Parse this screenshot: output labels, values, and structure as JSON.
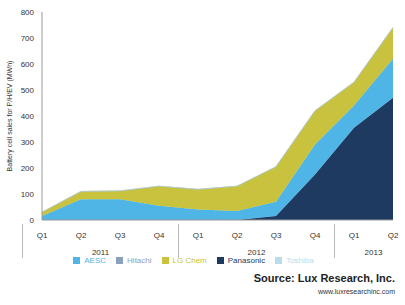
{
  "chart_data": {
    "type": "area",
    "stacked": true,
    "y_label": "Battery cell sales for P/H/EV  (MWh)",
    "categories": [
      "Q1",
      "Q2",
      "Q3",
      "Q4",
      "Q1",
      "Q2",
      "Q3",
      "Q4",
      "Q1",
      "Q2"
    ],
    "x_groups": [
      {
        "label": "2011",
        "span": 4
      },
      {
        "label": "2012",
        "span": 4
      },
      {
        "label": "2013",
        "span": 2
      }
    ],
    "series": [
      {
        "name": "Panasonic",
        "color": "#1f3a60",
        "values": [
          0,
          0,
          0,
          0,
          0,
          0,
          15,
          175,
          355,
          470
        ]
      },
      {
        "name": "AESC",
        "color": "#4fb4e6",
        "values": [
          15,
          80,
          80,
          55,
          40,
          35,
          55,
          115,
          85,
          150
        ]
      },
      {
        "name": "LG Chem",
        "color": "#c8c23e",
        "values": [
          15,
          30,
          32,
          75,
          78,
          95,
          135,
          130,
          90,
          120
        ]
      },
      {
        "name": "Hitachi",
        "color": "#8aa0bd",
        "values": [
          0,
          0,
          0,
          0,
          0,
          0,
          0,
          0,
          0,
          0
        ]
      },
      {
        "name": "Toshiba",
        "color": "#b9dcea",
        "values": [
          0,
          0,
          0,
          0,
          0,
          0,
          0,
          0,
          0,
          0
        ]
      }
    ],
    "ylim": [
      0,
      800
    ],
    "yticks": [
      0,
      100,
      200,
      300,
      400,
      500,
      600,
      700,
      800
    ],
    "grid": false,
    "legend": "bottom",
    "annotations": [
      "Source: Lux Research, Inc.",
      "www.luxresearchinc.com"
    ]
  }
}
